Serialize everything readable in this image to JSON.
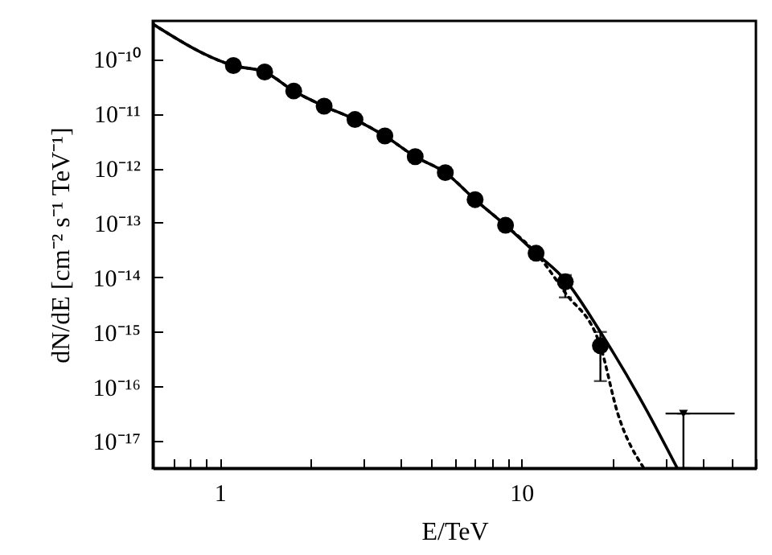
{
  "chart_data": {
    "type": "scatter",
    "xlabel": "E/TeV",
    "ylabel": "dN/dE [cm⁻² s⁻¹ TeV⁻¹]",
    "log": "xy",
    "grid": false,
    "xlim": [
      0.6,
      60
    ],
    "ylim": [
      3.2e-18,
      5e-10
    ],
    "xticks": [
      {
        "value": 0.6,
        "label": null
      },
      {
        "value": 0.7,
        "label": null
      },
      {
        "value": 0.8,
        "label": null
      },
      {
        "value": 0.9,
        "label": null
      },
      1,
      {
        "value": 2,
        "label": null
      },
      {
        "value": 3,
        "label": null
      },
      {
        "value": 4,
        "label": null
      },
      {
        "value": 5,
        "label": null
      },
      {
        "value": 6,
        "label": null
      },
      {
        "value": 7,
        "label": null
      },
      {
        "value": 8,
        "label": null
      },
      {
        "value": 9,
        "label": null
      },
      10,
      {
        "value": 20,
        "label": null
      },
      {
        "value": 30,
        "label": null
      },
      {
        "value": 40,
        "label": null
      },
      {
        "value": 50,
        "label": null
      },
      {
        "value": 60,
        "label": null
      }
    ],
    "yticks": [
      {
        "value": 1e-10,
        "label": "10⁻¹⁰"
      },
      {
        "value": 1e-11,
        "label": "10⁻¹¹"
      },
      {
        "value": 1e-12,
        "label": "10⁻¹²"
      },
      {
        "value": 1e-13,
        "label": "10⁻¹³"
      },
      {
        "value": 1e-14,
        "label": "10⁻¹⁴"
      },
      {
        "value": 1e-15,
        "label": "10⁻¹⁵"
      },
      {
        "value": 1e-16,
        "label": "10⁻¹⁶"
      },
      {
        "value": 1e-17,
        "label": "10⁻¹⁷"
      }
    ],
    "series": [
      {
        "type": "line",
        "line_style": "dotted",
        "color": "#000000",
        "x": [
          0.6,
          1.11,
          1.41,
          1.76,
          2.22,
          2.81,
          3.53,
          4.45,
          5.6,
          7.03,
          8.87,
          11.2,
          14,
          18.3,
          20.9,
          25.5
        ],
        "values": [
          4.4e-10,
          7.6e-11,
          5.8e-11,
          2.6e-11,
          1.37e-11,
          7.8e-12,
          3.9e-12,
          1.63e-12,
          8.3e-13,
          2.66e-13,
          9e-14,
          2.77e-14,
          5.2e-15,
          5.5e-16,
          3.2e-17,
          3.2e-18
        ]
      },
      {
        "type": "line",
        "line_style": "solid",
        "color": "#000000",
        "x": [
          0.6,
          1.11,
          1.41,
          1.76,
          2.22,
          2.81,
          3.53,
          4.45,
          5.6,
          7.03,
          8.87,
          11.2,
          14,
          18.3,
          24.6,
          32.9
        ],
        "values": [
          4.4e-10,
          7.6e-11,
          5.8e-11,
          2.6e-11,
          1.37e-11,
          7.8e-12,
          3.9e-12,
          1.63e-12,
          8.3e-13,
          2.66e-13,
          9e-14,
          2.77e-14,
          8.9e-15,
          1e-15,
          6.5e-17,
          3.2e-18
        ]
      },
      {
        "marker": "circle",
        "color": "#000000",
        "x": [
          1.11,
          1.41,
          1.76,
          2.22,
          2.81,
          3.53,
          4.45,
          5.6,
          7.03,
          8.87,
          11.2,
          14,
          18.3
        ],
        "values": [
          7.6e-11,
          5.8e-11,
          2.6e-11,
          1.37e-11,
          7.8e-12,
          3.9e-12,
          1.63e-12,
          8.3e-13,
          2.66e-13,
          9e-14,
          2.77e-14,
          8.3e-15,
          5.6e-16
        ],
        "errors": [
          null,
          null,
          null,
          null,
          null,
          null,
          null,
          null,
          null,
          null,
          null,
          [
            4.3e-15,
            1.1e-14
          ],
          [
            1.26e-16,
            1e-15
          ]
        ]
      },
      {
        "marker": "triangle",
        "color": "#000000",
        "x": [
          34.5
        ],
        "values": [
          3.2e-17
        ],
        "errors": [
          [
            3.2e-18,
            3.2e-17
          ]
        ],
        "xerrors": [
          [
            30.1,
            51
          ]
        ]
      }
    ]
  }
}
